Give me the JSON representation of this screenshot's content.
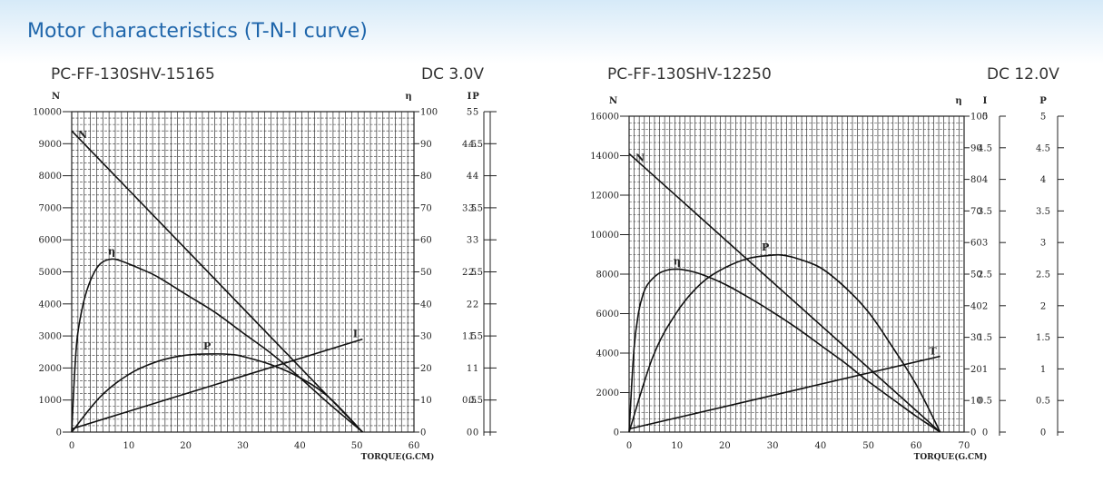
{
  "header": {
    "title": "Motor characteristics (T-N-I curve)"
  },
  "chart_data": [
    {
      "type": "line",
      "model": "PC-FF-130SHV-15165",
      "voltage": "DC 3.0V",
      "xlabel": "TORQUE(G.CM)",
      "xlim": [
        0,
        60
      ],
      "xticks": [
        0,
        10,
        20,
        30,
        40,
        50,
        60
      ],
      "left_axis": {
        "label": "N",
        "lim": [
          0,
          10000
        ],
        "ticks": [
          0,
          1000,
          2000,
          3000,
          4000,
          5000,
          6000,
          7000,
          8000,
          9000,
          10000
        ]
      },
      "right_axes": [
        {
          "label": "η",
          "lim": [
            0,
            100
          ],
          "ticks": [
            "0",
            "10",
            "20",
            "30",
            "40",
            "50",
            "60",
            "70",
            "80",
            "90",
            "100"
          ]
        },
        {
          "label": "I",
          "lim": [
            0,
            5
          ],
          "ticks": [
            "0",
            "0.5",
            "1",
            "1.5",
            "2",
            "2.5",
            "3",
            "3.5",
            "4",
            "4.5",
            "5"
          ]
        },
        {
          "label": "P",
          "lim": [
            0,
            5
          ],
          "ticks": [
            "0",
            "0.5",
            "1",
            "1.5",
            "2",
            "2.5",
            "3",
            "3.5",
            "4",
            "4.5",
            "5"
          ]
        }
      ],
      "series": [
        {
          "name": "N",
          "axis": "N",
          "x": [
            0,
            51
          ],
          "y": [
            9400,
            0
          ]
        },
        {
          "name": "η",
          "axis": "η",
          "x": [
            0,
            0.5,
            1,
            2,
            3,
            4,
            5,
            6,
            7,
            8,
            10,
            12,
            15,
            20,
            25,
            30,
            35,
            40,
            45,
            51
          ],
          "y": [
            0,
            18,
            30,
            40,
            46,
            50,
            52.5,
            53.6,
            54,
            53.8,
            52.5,
            51,
            48.5,
            43,
            37.5,
            31,
            24.5,
            17,
            9,
            0
          ]
        },
        {
          "name": "P",
          "axis": "P",
          "x": [
            0,
            5,
            10,
            15,
            20,
            25,
            28,
            30,
            35,
            40,
            45,
            51
          ],
          "y": [
            0,
            0.55,
            0.9,
            1.1,
            1.2,
            1.22,
            1.21,
            1.18,
            1.05,
            0.85,
            0.55,
            0
          ]
        },
        {
          "name": "I",
          "axis": "I",
          "x": [
            0,
            51
          ],
          "y": [
            0.05,
            1.45
          ]
        }
      ]
    },
    {
      "type": "line",
      "model": "PC-FF-130SHV-12250",
      "voltage": "DC 12.0V",
      "xlabel": "TORQUE(G.CM)",
      "xlim": [
        0,
        70
      ],
      "xticks": [
        0,
        10,
        20,
        30,
        40,
        50,
        60,
        70
      ],
      "left_axis": {
        "label": "N",
        "lim": [
          0,
          16000
        ],
        "ticks": [
          0,
          2000,
          4000,
          6000,
          8000,
          10000,
          12000,
          14000,
          16000
        ]
      },
      "right_axes": [
        {
          "label": "η",
          "lim": [
            0,
            100
          ],
          "ticks": [
            "0",
            "10",
            "20",
            "30",
            "40",
            "50",
            "60",
            "70",
            "80",
            "90",
            "100"
          ]
        },
        {
          "label": "I",
          "lim": [
            0,
            5
          ],
          "ticks": [
            "0",
            "0.5",
            "1",
            "1.5",
            "2",
            "2.5",
            "3",
            "3.5",
            "4",
            "4.5",
            "5"
          ]
        },
        {
          "label": "P",
          "lim": [
            0,
            5
          ],
          "ticks": [
            "0",
            "0.5",
            "1",
            "1.5",
            "2",
            "2.5",
            "3",
            "3.5",
            "4",
            "4.5",
            "5"
          ]
        }
      ],
      "series": [
        {
          "name": "N",
          "axis": "N",
          "x": [
            0,
            65
          ],
          "y": [
            14100,
            0
          ]
        },
        {
          "name": "η",
          "axis": "η",
          "x": [
            0,
            1,
            2,
            3,
            4,
            6,
            8,
            10,
            12,
            15,
            20,
            25,
            30,
            35,
            40,
            45,
            50,
            55,
            60,
            65
          ],
          "y": [
            0,
            26,
            38,
            44,
            47,
            50,
            51.3,
            51.6,
            51.2,
            50,
            46.8,
            42.6,
            38,
            33,
            27.5,
            22,
            16,
            10.5,
            5,
            0
          ]
        },
        {
          "name": "P",
          "axis": "P",
          "x": [
            0,
            5,
            10,
            15,
            20,
            25,
            30,
            32,
            35,
            40,
            45,
            50,
            55,
            60,
            65
          ],
          "y": [
            0,
            1.2,
            1.9,
            2.35,
            2.6,
            2.75,
            2.8,
            2.8,
            2.75,
            2.6,
            2.3,
            1.9,
            1.35,
            0.75,
            0
          ]
        },
        {
          "name": "I",
          "axis": "I",
          "x": [
            0,
            65
          ],
          "y": [
            0.05,
            1.2
          ]
        }
      ],
      "labels": {
        "I": "T"
      }
    }
  ]
}
